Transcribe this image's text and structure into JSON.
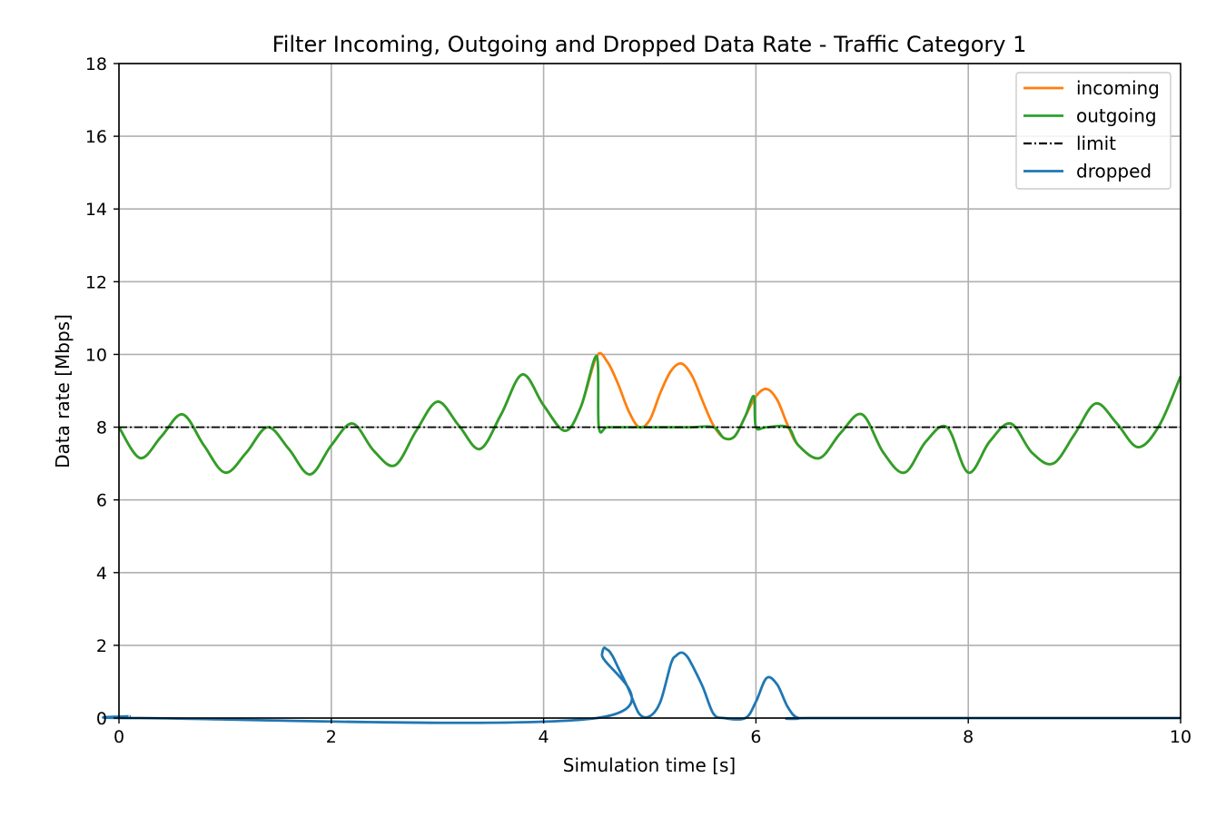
{
  "chart_data": {
    "type": "line",
    "title": "Filter Incoming, Outgoing and Dropped Data Rate - Traffic Category 1",
    "xlabel": "Simulation time [s]",
    "ylabel": "Data rate [Mbps]",
    "xlim": [
      0,
      10
    ],
    "ylim": [
      0,
      18
    ],
    "xticks": [
      "0",
      "2",
      "4",
      "6",
      "8",
      "10"
    ],
    "yticks": [
      "0",
      "2",
      "4",
      "6",
      "8",
      "10",
      "12",
      "14",
      "16",
      "18"
    ],
    "grid": true,
    "legend_position": "top-right",
    "series": [
      {
        "name": "incoming",
        "color": "#ff7f0e",
        "style": "solid",
        "x": [
          0.0,
          0.2,
          0.4,
          0.6,
          0.8,
          1.0,
          1.2,
          1.4,
          1.6,
          1.8,
          2.0,
          2.2,
          2.4,
          2.6,
          2.8,
          3.0,
          3.2,
          3.4,
          3.6,
          3.8,
          4.0,
          4.2,
          4.35,
          4.5,
          4.6,
          4.7,
          4.8,
          4.9,
          5.0,
          5.1,
          5.2,
          5.3,
          5.4,
          5.5,
          5.6,
          5.7,
          5.8,
          5.9,
          6.0,
          6.1,
          6.2,
          6.3,
          6.4,
          6.6,
          6.8,
          7.0,
          7.2,
          7.4,
          7.6,
          7.8,
          8.0,
          8.2,
          8.4,
          8.6,
          8.8,
          9.0,
          9.2,
          9.4,
          9.6,
          9.8,
          10.0
        ],
        "values": [
          8.0,
          7.15,
          7.75,
          8.35,
          7.5,
          6.75,
          7.3,
          8.0,
          7.4,
          6.7,
          7.5,
          8.1,
          7.35,
          6.95,
          7.9,
          8.7,
          8.05,
          7.4,
          8.35,
          9.45,
          8.6,
          7.9,
          8.55,
          9.95,
          9.8,
          9.2,
          8.45,
          8.0,
          8.2,
          8.95,
          9.55,
          9.75,
          9.4,
          8.7,
          8.05,
          7.7,
          7.75,
          8.3,
          8.85,
          9.05,
          8.75,
          8.05,
          7.5,
          7.15,
          7.85,
          8.35,
          7.3,
          6.75,
          7.6,
          8.0,
          6.75,
          7.6,
          8.1,
          7.3,
          7.0,
          7.8,
          8.65,
          8.1,
          7.45,
          8.05,
          9.4
        ]
      },
      {
        "name": "outgoing",
        "color": "#2ca02c",
        "style": "solid",
        "x": [
          0.0,
          0.2,
          0.4,
          0.6,
          0.8,
          1.0,
          1.2,
          1.4,
          1.6,
          1.8,
          2.0,
          2.2,
          2.4,
          2.6,
          2.8,
          3.0,
          3.2,
          3.4,
          3.6,
          3.8,
          4.0,
          4.2,
          4.35,
          4.5,
          4.52,
          4.6,
          4.8,
          5.0,
          5.2,
          5.4,
          5.6,
          5.7,
          5.8,
          5.9,
          5.98,
          6.0,
          6.1,
          6.3,
          6.4,
          6.6,
          6.8,
          7.0,
          7.2,
          7.4,
          7.6,
          7.8,
          8.0,
          8.2,
          8.4,
          8.6,
          8.8,
          9.0,
          9.2,
          9.4,
          9.6,
          9.8,
          10.0
        ],
        "values": [
          8.0,
          7.15,
          7.75,
          8.35,
          7.5,
          6.75,
          7.3,
          8.0,
          7.4,
          6.7,
          7.5,
          8.1,
          7.35,
          6.95,
          7.9,
          8.7,
          8.05,
          7.4,
          8.35,
          9.45,
          8.6,
          7.9,
          8.55,
          9.95,
          8.0,
          8.0,
          8.0,
          8.0,
          8.0,
          8.0,
          8.0,
          7.7,
          7.75,
          8.3,
          8.85,
          8.0,
          8.0,
          8.0,
          7.5,
          7.15,
          7.85,
          8.35,
          7.3,
          6.75,
          7.6,
          8.0,
          6.75,
          7.6,
          8.1,
          7.3,
          7.0,
          7.8,
          8.65,
          8.1,
          7.45,
          8.05,
          9.4
        ]
      },
      {
        "name": "limit",
        "color": "#000000",
        "style": "dashdot",
        "x": [
          0,
          10
        ],
        "values": [
          8,
          8
        ]
      },
      {
        "name": "dropped",
        "color": "#1f77b4",
        "style": "solid",
        "x": [
          0.1,
          0.2,
          4.5,
          4.55,
          4.6,
          4.65,
          4.7,
          4.8,
          4.9,
          5.0,
          5.1,
          5.2,
          5.25,
          5.3,
          5.35,
          5.4,
          5.5,
          5.6,
          5.7,
          5.9,
          6.0,
          6.1,
          6.2,
          6.3,
          6.4,
          6.6,
          10.0
        ],
        "values": [
          0.05,
          0.0,
          0.0,
          1.75,
          1.88,
          1.7,
          1.4,
          0.8,
          0.12,
          0.05,
          0.45,
          1.5,
          1.72,
          1.8,
          1.7,
          1.45,
          0.85,
          0.12,
          0.0,
          0.0,
          0.45,
          1.1,
          0.92,
          0.3,
          0.0,
          0.0,
          0.0
        ]
      }
    ]
  }
}
